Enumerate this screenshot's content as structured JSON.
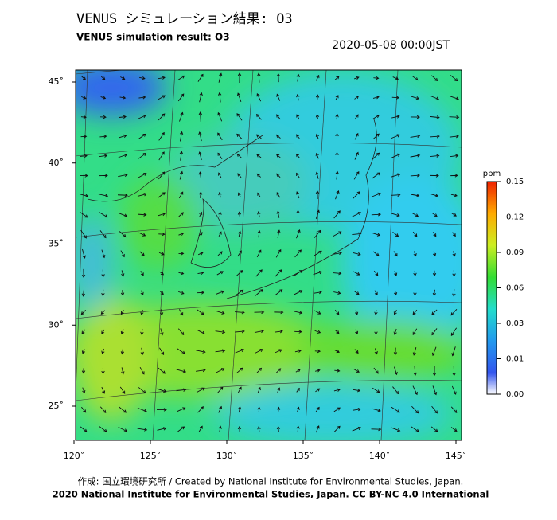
{
  "header": {
    "title": "VENUS シミュレーション結果: O3",
    "subtitle": "VENUS simulation result: O3",
    "timestamp": "2020-05-08 00:00JST"
  },
  "map": {
    "lat_ticks": [
      {
        "value": 45,
        "label": "45˚"
      },
      {
        "value": 40,
        "label": "40˚"
      },
      {
        "value": 35,
        "label": "35˚"
      },
      {
        "value": 30,
        "label": "30˚"
      },
      {
        "value": 25,
        "label": "25˚"
      }
    ],
    "lon_ticks": [
      {
        "value": 120,
        "label": "120˚"
      },
      {
        "value": 125,
        "label": "125˚"
      },
      {
        "value": 130,
        "label": "130˚"
      },
      {
        "value": 135,
        "label": "135˚"
      },
      {
        "value": 140,
        "label": "140˚"
      },
      {
        "value": 145,
        "label": "145˚"
      }
    ]
  },
  "colorbar": {
    "unit": "ppm",
    "ticks": [
      0.15,
      0.12,
      0.09,
      0.06,
      0.03,
      0.01,
      {
        "value": 0,
        "label": "0.00"
      }
    ]
  },
  "footer": {
    "credit": "作成: 国立環境研究所 / Created by National Institute for Environmental Studies, Japan.",
    "license": "2020 National Institute for Environmental Studies, Japan. CC BY-NC 4.0 International"
  }
}
